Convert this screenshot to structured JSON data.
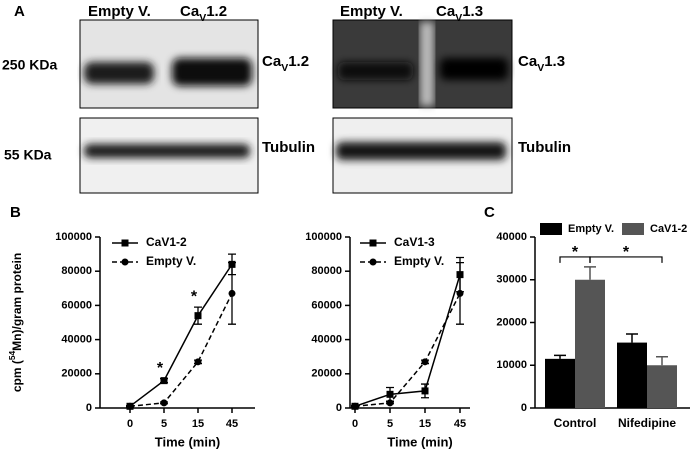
{
  "panels": [
    "A",
    "B",
    "C"
  ],
  "markers": [
    "250 KDa",
    "55 KDa"
  ],
  "blots": [
    {
      "lanes": [
        "Empty V.",
        {
          "pre": "Ca",
          "sub": "V",
          "post": "1.2"
        }
      ],
      "bands": [
        {
          "pre": "Ca",
          "sub": "V",
          "post": "1.2"
        },
        "Tubulin"
      ]
    },
    {
      "lanes": [
        "Empty V.",
        {
          "pre": "Ca",
          "sub": "V",
          "post": "1.3"
        }
      ],
      "bands": [
        {
          "pre": "Ca",
          "sub": "V",
          "post": "1.3"
        },
        "Tubulin"
      ]
    }
  ],
  "chart_data": [
    {
      "type": "line",
      "categories": [
        "0",
        "5",
        "15",
        "45"
      ],
      "xlabel": "Time (min)",
      "ylabel": {
        "pre": "cpm (",
        "sup": "54",
        "post": "Mn)/gram protein"
      },
      "ylim": [
        0,
        100000
      ],
      "yticks": [
        0,
        20000,
        40000,
        60000,
        80000,
        100000
      ],
      "series": [
        {
          "name": "CaV1-2",
          "color": "#000000",
          "line_style": "solid",
          "marker": "square",
          "values": [
            1000,
            16000,
            54000,
            84000
          ],
          "errors": [
            300,
            1200,
            5000,
            6000
          ]
        },
        {
          "name": "Empty V.",
          "color": "#000000",
          "line_style": "dashed",
          "marker": "circle",
          "values": [
            1000,
            3000,
            27000,
            67000
          ],
          "errors": [
            300,
            500,
            1000,
            18000
          ]
        }
      ],
      "annotations": [
        "*",
        "*"
      ]
    },
    {
      "type": "line",
      "categories": [
        "0",
        "5",
        "15",
        "45"
      ],
      "xlabel": "Time (min)",
      "ylim": [
        0,
        100000
      ],
      "yticks": [
        0,
        20000,
        40000,
        60000,
        80000,
        100000
      ],
      "series": [
        {
          "name": "CaV1-3",
          "color": "#000000",
          "line_style": "solid",
          "marker": "square",
          "values": [
            1000,
            8000,
            10000,
            78000
          ],
          "errors": [
            500,
            4000,
            4000,
            10000
          ]
        },
        {
          "name": "Empty V.",
          "color": "#000000",
          "line_style": "dashed",
          "marker": "circle",
          "values": [
            1000,
            3000,
            27000,
            67000
          ],
          "errors": [
            300,
            500,
            1000,
            18000
          ]
        }
      ]
    },
    {
      "type": "bar",
      "categories": [
        "Control",
        "Nifedipine"
      ],
      "ylim": [
        0,
        40000
      ],
      "yticks": [
        0,
        10000,
        20000,
        30000,
        40000
      ],
      "series": [
        {
          "name": "Empty V.",
          "color": "#000000",
          "values": [
            11500,
            15300
          ],
          "errors": [
            800,
            2000
          ]
        },
        {
          "name": "CaV1-2",
          "color": "#555555",
          "values": [
            30000,
            10000
          ],
          "errors": [
            3000,
            2000
          ]
        }
      ],
      "annotations": [
        "*",
        "*"
      ]
    }
  ]
}
